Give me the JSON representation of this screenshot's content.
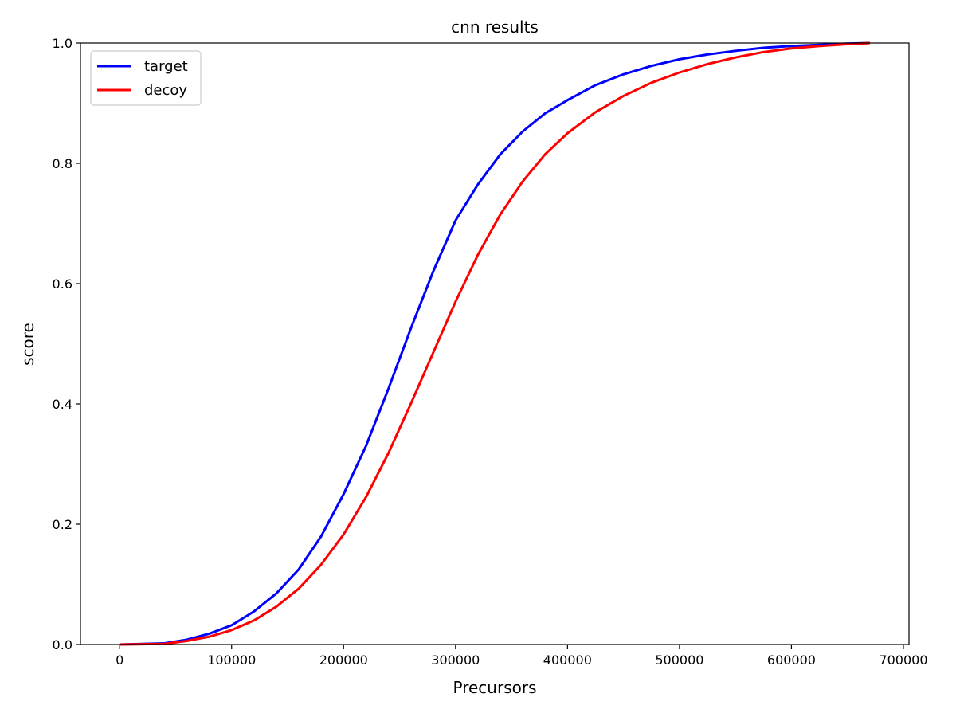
{
  "chart_data": {
    "type": "line",
    "title": "cnn results",
    "xlabel": "Precursors",
    "ylabel": "score",
    "xlim": [
      -35000,
      705000
    ],
    "ylim": [
      0.0,
      1.0
    ],
    "xticks": [
      0,
      100000,
      200000,
      300000,
      400000,
      500000,
      600000,
      700000
    ],
    "xtick_labels": [
      "0",
      "100000",
      "200000",
      "300000",
      "400000",
      "500000",
      "600000",
      "700000"
    ],
    "yticks": [
      0.0,
      0.2,
      0.4,
      0.6,
      0.8,
      1.0
    ],
    "ytick_labels": [
      "0.0",
      "0.2",
      "0.4",
      "0.6",
      "0.8",
      "1.0"
    ],
    "grid": false,
    "legend": "top-left",
    "series": [
      {
        "name": "target",
        "color": "#0000ff",
        "x": [
          0,
          40000,
          60000,
          80000,
          100000,
          120000,
          140000,
          160000,
          180000,
          200000,
          220000,
          240000,
          260000,
          280000,
          300000,
          320000,
          340000,
          360000,
          380000,
          400000,
          425000,
          450000,
          475000,
          500000,
          525000,
          550000,
          575000,
          600000,
          625000,
          650000,
          670000
        ],
        "y": [
          0.0,
          0.002,
          0.008,
          0.018,
          0.032,
          0.055,
          0.085,
          0.125,
          0.18,
          0.25,
          0.33,
          0.425,
          0.525,
          0.62,
          0.705,
          0.765,
          0.815,
          0.853,
          0.883,
          0.905,
          0.93,
          0.948,
          0.962,
          0.973,
          0.981,
          0.987,
          0.992,
          0.995,
          0.997,
          0.999,
          1.0
        ]
      },
      {
        "name": "decoy",
        "color": "#ff0000",
        "x": [
          0,
          40000,
          60000,
          80000,
          100000,
          120000,
          140000,
          160000,
          180000,
          200000,
          220000,
          240000,
          260000,
          280000,
          300000,
          320000,
          340000,
          360000,
          380000,
          400000,
          425000,
          450000,
          475000,
          500000,
          525000,
          550000,
          575000,
          600000,
          625000,
          650000,
          670000
        ],
        "y": [
          0.0,
          0.001,
          0.006,
          0.013,
          0.024,
          0.04,
          0.063,
          0.093,
          0.133,
          0.183,
          0.245,
          0.318,
          0.4,
          0.485,
          0.57,
          0.648,
          0.715,
          0.77,
          0.815,
          0.85,
          0.885,
          0.912,
          0.934,
          0.951,
          0.965,
          0.976,
          0.985,
          0.991,
          0.995,
          0.998,
          1.0
        ]
      }
    ]
  }
}
